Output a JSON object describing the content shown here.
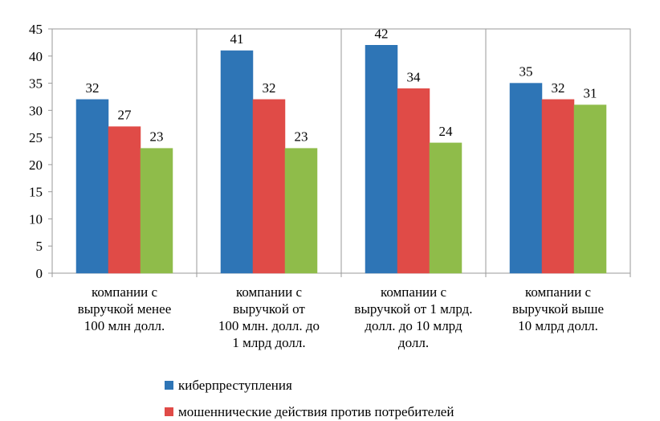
{
  "chart_data": {
    "type": "bar",
    "title": "",
    "xlabel": "",
    "ylabel": "",
    "ylim": [
      0,
      45
    ],
    "yticks": [
      0,
      5,
      10,
      15,
      20,
      25,
      30,
      35,
      40,
      45
    ],
    "grid": {
      "horizontal": false,
      "vertical_separators": true
    },
    "legend_position": "bottom",
    "categories": [
      [
        "компании с",
        "выручкой менее",
        "100 млн  долл."
      ],
      [
        "компании с",
        "выручкой от",
        "100 млн. долл. до",
        "1 млрд  долл."
      ],
      [
        "компании с",
        "выручкой от 1 млрд.",
        "долл. до 10 млрд",
        "долл."
      ],
      [
        "компании с",
        "выручкой выше",
        "10  млрд  долл."
      ]
    ],
    "series": [
      {
        "name": "киберпреступления",
        "color": "#2e75b6",
        "values": [
          32,
          41,
          42,
          35
        ]
      },
      {
        "name": "мошеннические действия против потребителей",
        "color": "#e04b47",
        "values": [
          27,
          32,
          34,
          32
        ]
      },
      {
        "name": "",
        "color": "#8fbc4a",
        "values": [
          23,
          23,
          24,
          31
        ]
      }
    ]
  }
}
